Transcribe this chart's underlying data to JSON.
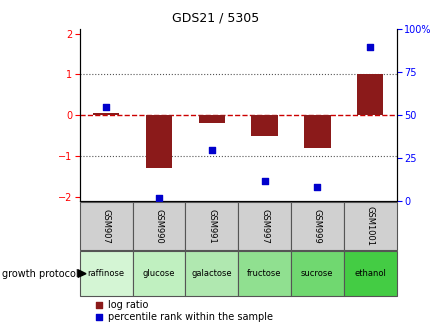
{
  "title": "GDS21 / 5305",
  "samples": [
    "GSM907",
    "GSM990",
    "GSM991",
    "GSM997",
    "GSM999",
    "GSM1001"
  ],
  "protocols": [
    "raffinose",
    "glucose",
    "galactose",
    "fructose",
    "sucrose",
    "ethanol"
  ],
  "log_ratios": [
    0.05,
    -1.3,
    -0.2,
    -0.5,
    -0.8,
    1.0
  ],
  "percentile_ranks": [
    55,
    2,
    30,
    12,
    8,
    90
  ],
  "bar_color": "#8B1A1A",
  "dot_color": "#0000CC",
  "zero_line_color": "#CC0000",
  "dotted_line_color": "#555555",
  "ylim_left": [
    -2.1,
    2.1
  ],
  "yticks_left": [
    -2,
    -1,
    0,
    1,
    2
  ],
  "yticks_right": [
    0,
    25,
    50,
    75,
    100
  ],
  "protocol_colors": [
    "#d4f5d4",
    "#c0f0c0",
    "#b0e8b0",
    "#90e090",
    "#70d870",
    "#44cc44"
  ],
  "sample_box_color": "#d0d0d0",
  "legend_log_ratio": "log ratio",
  "legend_percentile": "percentile rank within the sample",
  "growth_protocol_label": "growth protocol",
  "bar_width": 0.5,
  "title_fontsize": 9,
  "tick_fontsize": 7,
  "label_fontsize": 6,
  "proto_fontsize": 6,
  "legend_fontsize": 7
}
